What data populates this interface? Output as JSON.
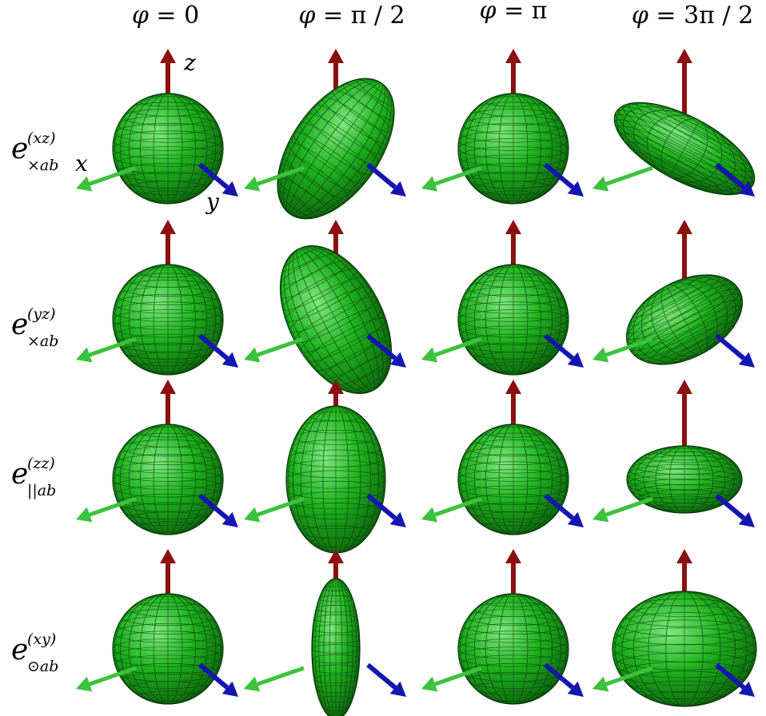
{
  "columns": [
    {
      "label_left": "φ",
      "label_right": "= 0"
    },
    {
      "label_left": "φ",
      "label_right": "= π / 2"
    },
    {
      "label_left": "φ",
      "label_right": "= π"
    },
    {
      "label_left": "φ",
      "label_right": "= 3π / 2"
    }
  ],
  "rows": [
    {
      "symbol": "e",
      "superscript": "(xz)",
      "subscript": "×ab"
    },
    {
      "symbol": "e",
      "superscript": "(yz)",
      "subscript": "×ab"
    },
    {
      "symbol": "e",
      "superscript": "(zz)",
      "subscript": "||ab"
    },
    {
      "symbol": "e",
      "superscript": "(xy)",
      "subscript": "⊙ab"
    }
  ],
  "axis_labels": {
    "x": "x",
    "y": "y",
    "z": "z"
  },
  "colors": {
    "z_axis": "#8b1010",
    "x_axis": "#3cc23c",
    "y_axis": "#1515b0",
    "surface_light": "#7ee87e",
    "surface_mid": "#1fb41f",
    "surface_dark": "#0a5a0a",
    "mesh": "#0b3d0b"
  }
}
